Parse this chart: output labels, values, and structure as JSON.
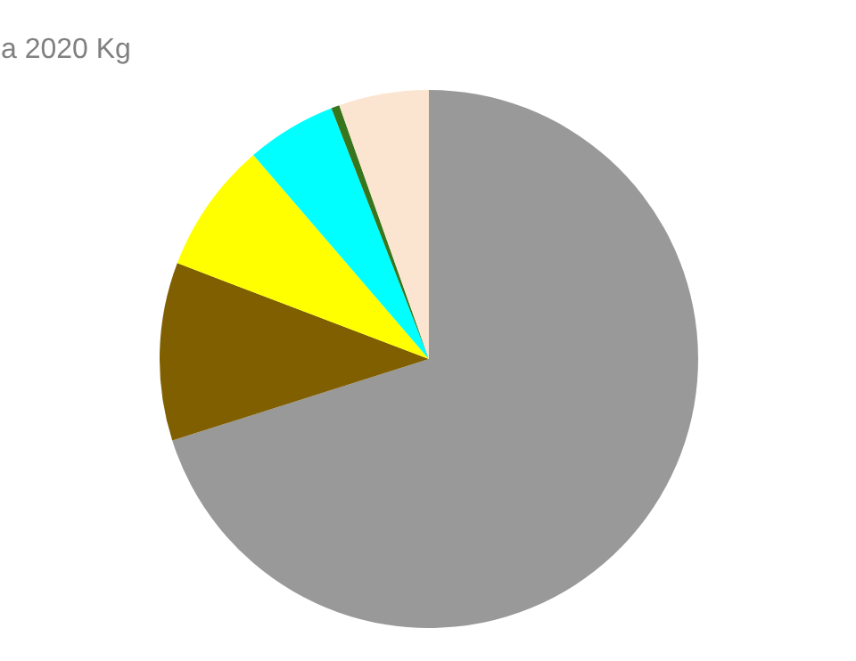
{
  "chart_data": {
    "type": "pie",
    "title": "a 2020 Kg",
    "categories": [
      null,
      null,
      null,
      null,
      null,
      null
    ],
    "values": [
      70.1,
      10.7,
      7.9,
      5.4,
      0.5,
      5.4
    ],
    "colors": [
      "#999999",
      "#7f5f00",
      "#ffff00",
      "#00ffff",
      "#38761d",
      "#fbe5d0"
    ]
  }
}
